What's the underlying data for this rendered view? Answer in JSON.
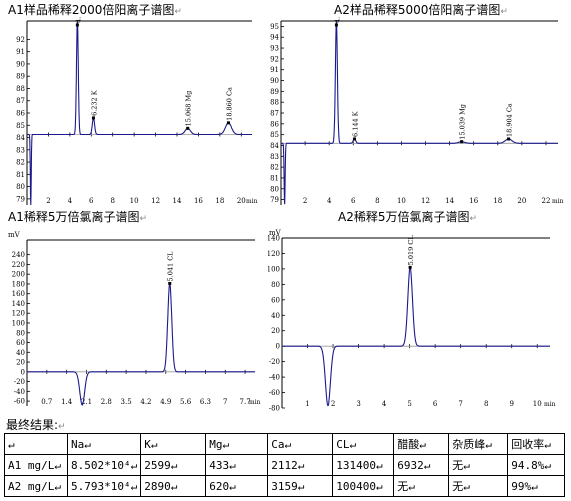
{
  "arrow_mark": "↵",
  "results": {
    "title": "最终结果:",
    "header": [
      "↵",
      "Na↵",
      "K↵",
      "Mg↵",
      "Ca↵",
      "CL↵",
      "醋酸↵",
      "杂质峰↵",
      "回收率↵"
    ],
    "rows": [
      [
        "A1 mg/L↵",
        "8.502*10⁴↵",
        "2599↵",
        "433↵",
        "2112↵",
        "131400↵",
        "6932↵",
        "无↵",
        "94.8%↵"
      ],
      [
        "A2 mg/L↵",
        "5.793*10⁴↵",
        "2890↵",
        "620↵",
        "3159↵",
        "100400↵",
        "无↵",
        "无↵",
        "99%↵"
      ]
    ]
  },
  "chart_data": [
    {
      "type": "line",
      "title": "A1样品稀释2000倍阳离子谱图",
      "xunit": "min",
      "ylabel": "",
      "xlim": [
        0,
        21
      ],
      "ylim": [
        78.5,
        93.5
      ],
      "xticks": [
        2,
        4,
        6,
        8,
        10,
        12,
        14,
        16,
        18,
        20
      ],
      "yticks": [
        79,
        80,
        81,
        82,
        83,
        84,
        85,
        86,
        87,
        88,
        89,
        90,
        91,
        92
      ],
      "baseline": 84.25,
      "dip": {
        "x": 0.35,
        "y": 78.5
      },
      "peaks": [
        {
          "x": 4.7,
          "height": 93.5,
          "width": 0.12,
          "label": "4.827 Na"
        },
        {
          "x": 6.2,
          "height": 85.6,
          "width": 0.15,
          "label": "6.232 K"
        },
        {
          "x": 15.0,
          "height": 84.75,
          "width": 0.35,
          "label": "15.068 Mg"
        },
        {
          "x": 18.8,
          "height": 85.2,
          "width": 0.4,
          "label": "18.860 Ca"
        }
      ]
    },
    {
      "type": "line",
      "title": "A2样品稀释5000倍阳离子谱图",
      "xunit": "min",
      "ylabel": "",
      "xlim": [
        0,
        23
      ],
      "ylim": [
        78.5,
        95.5
      ],
      "xticks": [
        2,
        4,
        6,
        8,
        10,
        12,
        14,
        16,
        18,
        20,
        22
      ],
      "yticks": [
        79,
        80,
        81,
        82,
        83,
        84,
        85,
        86,
        87,
        88,
        89,
        90,
        91,
        92,
        93,
        94,
        95
      ],
      "baseline": 84.2,
      "dip": {
        "x": 0.3,
        "y": 78.5
      },
      "peaks": [
        {
          "x": 4.6,
          "height": 95.5,
          "width": 0.12,
          "label": "4.549 Na"
        },
        {
          "x": 6.1,
          "height": 84.6,
          "width": 0.15,
          "label": "6.144 K"
        },
        {
          "x": 15.0,
          "height": 84.35,
          "width": 0.35,
          "label": "15.039 Mg"
        },
        {
          "x": 18.9,
          "height": 84.6,
          "width": 0.4,
          "label": "18.904 Ca"
        }
      ]
    },
    {
      "type": "line",
      "title": "A1稀释5万倍氯离子谱图",
      "xunit": "min",
      "ylabel": "mV",
      "xlim": [
        0,
        8.05
      ],
      "ylim": [
        -70,
        270
      ],
      "xticks": [
        0.7,
        1.4,
        2.1,
        2.8,
        3.5,
        4.2,
        4.9,
        5.6,
        6.3,
        7.0,
        7.7
      ],
      "xtick_labels": [
        "0.7",
        "1.4",
        "2.1",
        "2.8",
        "3.5",
        "4.2",
        "4.9",
        "5.6",
        "6.3",
        "7",
        "7.7"
      ],
      "yticks": [
        -60,
        -40,
        -20,
        0,
        20,
        40,
        60,
        80,
        100,
        120,
        140,
        160,
        180,
        200,
        220,
        240
      ],
      "baseline": 0,
      "dip": {
        "x": 1.95,
        "y": -68,
        "width": 0.12
      },
      "peaks": [
        {
          "x": 5.04,
          "height": 181,
          "width": 0.1,
          "label": "5.041 CL"
        }
      ]
    },
    {
      "type": "line",
      "title": "A2稀释5万倍氯离子谱图",
      "xunit": "min",
      "ylabel": "mV",
      "xlim": [
        0,
        10.5
      ],
      "ylim": [
        -80,
        140
      ],
      "xticks": [
        1,
        2,
        3,
        4,
        5,
        6,
        7,
        8,
        9,
        10
      ],
      "yticks": [
        -80,
        -60,
        -40,
        -20,
        0,
        20,
        40,
        60,
        80,
        100,
        120,
        140
      ],
      "baseline": 0,
      "dip": {
        "x": 1.8,
        "y": -77,
        "width": 0.14
      },
      "peaks": [
        {
          "x": 5.02,
          "height": 102,
          "width": 0.13,
          "label": "5.019 CL"
        }
      ]
    }
  ]
}
